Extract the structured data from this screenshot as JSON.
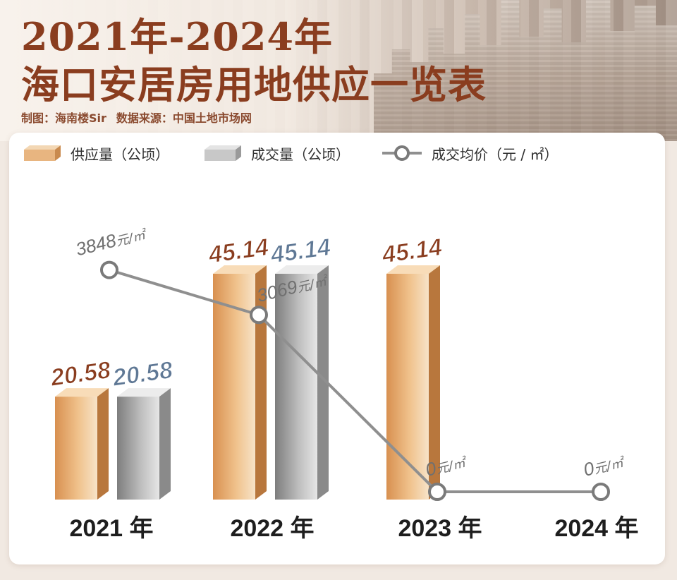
{
  "header": {
    "title_line1": "2021年-2024年",
    "title_line2": "海口安居房用地供应一览表",
    "credit_maker": "制图：海南楼Sir",
    "credit_source": "数据来源：中国土地市场网"
  },
  "legend": {
    "supply": "供应量（公顷）",
    "deal": "成交量（公顷）",
    "price": "成交均价（元 / ㎡）"
  },
  "colors": {
    "supply": "#e0a66a",
    "deal": "#9c9c9c",
    "price_line": "#8f8f8f",
    "supply_label": "#8a3d1f",
    "deal_label": "#5f7895"
  },
  "chart_data": {
    "type": "bar",
    "categories": [
      "2021 年",
      "2022 年",
      "2023 年",
      "2024 年"
    ],
    "series": [
      {
        "name": "供应量（公顷）",
        "values": [
          20.58,
          45.14,
          45.14,
          null
        ]
      },
      {
        "name": "成交量（公顷）",
        "values": [
          20.58,
          45.14,
          null,
          null
        ]
      },
      {
        "name": "成交均价（元 / ㎡）",
        "type": "line",
        "values": [
          3848,
          3069,
          0,
          0
        ]
      }
    ],
    "bar_labels": {
      "supply": [
        "20.58",
        "45.14",
        "45.14",
        ""
      ],
      "deal": [
        "20.58",
        "45.14",
        "",
        ""
      ]
    },
    "price_labels": [
      "3848",
      "3069",
      "0",
      "0"
    ],
    "price_unit": "元/㎡",
    "legend_position": "top-left",
    "grid": false
  }
}
